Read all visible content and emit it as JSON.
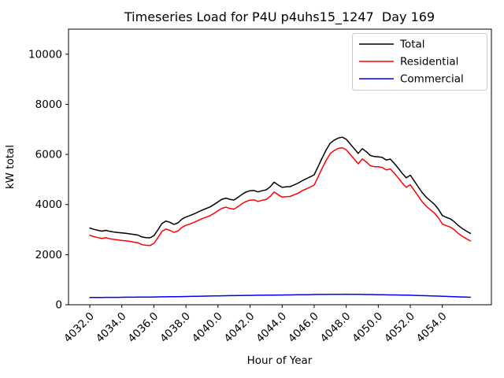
{
  "figure": {
    "background": "#ffffff"
  },
  "chart_data": {
    "type": "line",
    "title": "Timeseries Load for P4U p4uhs15_1247  Day 169",
    "xlabel": "Hour of Year",
    "ylabel": "kW total",
    "xlim": [
      4030.67,
      4057.06
    ],
    "ylim": [
      0,
      11000
    ],
    "grid": false,
    "legend_position": "upper right",
    "xtick_values": [
      4032,
      4034,
      4036,
      4038,
      4040,
      4042,
      4044,
      4046,
      4048,
      4050,
      4052,
      4054
    ],
    "xtick_labels": [
      "4032.0",
      "4034.0",
      "4036.0",
      "4038.0",
      "4040.0",
      "4042.0",
      "4044.0",
      "4046.0",
      "4048.0",
      "4050.0",
      "4052.0",
      "4054.0"
    ],
    "ytick_values": [
      0,
      2000,
      4000,
      6000,
      8000,
      10000
    ],
    "ytick_labels": [
      "0",
      "2000",
      "4000",
      "6000",
      "8000",
      "10000"
    ],
    "x_start": 4032.0,
    "x_step": 0.25,
    "n_points": 96,
    "series": [
      {
        "name": "Total",
        "color": "#000000",
        "values": [
          3060,
          3010,
          2970,
          2940,
          2970,
          2930,
          2905,
          2885,
          2865,
          2850,
          2830,
          2805,
          2780,
          2705,
          2680,
          2670,
          2760,
          2990,
          3240,
          3340,
          3290,
          3210,
          3270,
          3420,
          3500,
          3560,
          3625,
          3700,
          3775,
          3840,
          3905,
          4000,
          4110,
          4210,
          4255,
          4205,
          4180,
          4290,
          4405,
          4500,
          4550,
          4560,
          4505,
          4550,
          4585,
          4705,
          4890,
          4780,
          4685,
          4705,
          4715,
          4785,
          4855,
          4950,
          5025,
          5105,
          5185,
          5520,
          5860,
          6180,
          6450,
          6570,
          6655,
          6690,
          6605,
          6420,
          6230,
          6040,
          6230,
          6110,
          5960,
          5915,
          5905,
          5880,
          5775,
          5815,
          5640,
          5450,
          5240,
          5070,
          5170,
          4940,
          4700,
          4470,
          4290,
          4150,
          4010,
          3820,
          3560,
          3490,
          3430,
          3310,
          3160,
          3040,
          2940,
          2850
        ]
      },
      {
        "name": "Residential",
        "color": "#ff0000",
        "values": [
          2770,
          2720,
          2680,
          2645,
          2675,
          2635,
          2610,
          2590,
          2565,
          2550,
          2530,
          2500,
          2475,
          2400,
          2375,
          2365,
          2450,
          2675,
          2925,
          3020,
          2970,
          2890,
          2945,
          3090,
          3170,
          3225,
          3290,
          3360,
          3435,
          3495,
          3555,
          3650,
          3755,
          3850,
          3895,
          3840,
          3815,
          3920,
          4035,
          4125,
          4175,
          4185,
          4125,
          4170,
          4200,
          4320,
          4505,
          4390,
          4295,
          4315,
          4320,
          4390,
          4455,
          4550,
          4620,
          4700,
          4775,
          5110,
          5450,
          5765,
          6035,
          6155,
          6240,
          6270,
          6185,
          6000,
          5815,
          5625,
          5820,
          5700,
          5550,
          5510,
          5505,
          5480,
          5380,
          5420,
          5250,
          5060,
          4850,
          4685,
          4790,
          4565,
          4330,
          4105,
          3930,
          3795,
          3660,
          3475,
          3220,
          3155,
          3100,
          2990,
          2845,
          2730,
          2635,
          2550
        ]
      },
      {
        "name": "Commercial",
        "color": "#0000ff",
        "values": [
          290,
          291,
          292,
          293,
          294,
          295,
          296,
          297,
          300,
          301,
          302,
          303,
          304,
          305,
          306,
          307,
          310,
          313,
          316,
          318,
          320,
          322,
          325,
          328,
          330,
          333,
          336,
          339,
          342,
          345,
          348,
          351,
          355,
          358,
          360,
          363,
          365,
          368,
          370,
          373,
          375,
          377,
          379,
          381,
          383,
          385,
          387,
          389,
          390,
          392,
          394,
          396,
          398,
          400,
          403,
          406,
          410,
          411,
          412,
          413,
          414,
          415,
          416,
          417,
          420,
          418,
          416,
          414,
          412,
          410,
          408,
          405,
          400,
          398,
          396,
          394,
          392,
          390,
          388,
          385,
          380,
          375,
          370,
          365,
          360,
          355,
          350,
          345,
          340,
          334,
          328,
          322,
          315,
          310,
          305,
          300
        ]
      }
    ]
  }
}
